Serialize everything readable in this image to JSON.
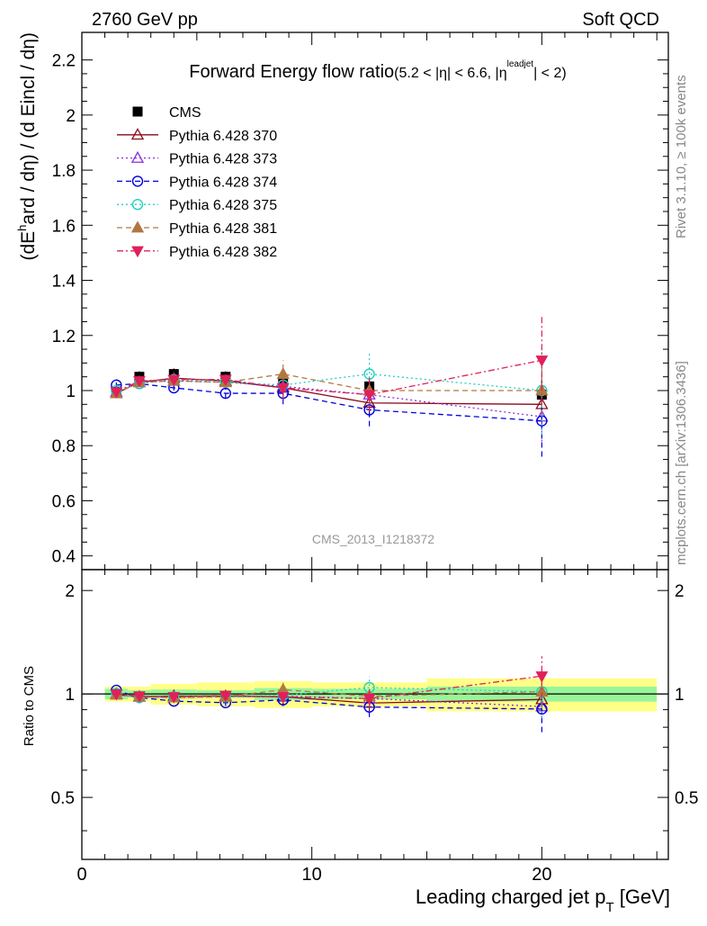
{
  "header": {
    "left": "2760 GeV pp",
    "right": "Soft QCD"
  },
  "side_labels": {
    "rivet": "Rivet 3.1.10, ≥ 100k events",
    "mcplots": "mcplots.cern.ch [arXiv:1306.3436]"
  },
  "chart_data": [
    {
      "type": "line",
      "title": "Forward Energy flow ratio",
      "title_cut": "(5.2 < |η| < 6.6, |η",
      "title_cut_sup": "leadjet",
      "title_cut_end": "| < 2)",
      "ylabel": "(dE^hard / dη) / (d Eincl / dη)",
      "ylabel_parts": {
        "a": "(dE",
        "sup": "h",
        "b": "ard / dη) / (d Eincl / dη)"
      },
      "watermark": "CMS_2013_I1218372",
      "xlim": [
        0,
        25.5
      ],
      "ylim": [
        0.35,
        2.3
      ],
      "yticks": [
        "0.4",
        "0.6",
        "0.8",
        "1",
        "1.2",
        "1.4",
        "1.6",
        "1.8",
        "2",
        "2.2"
      ],
      "x": [
        1.5,
        2.5,
        4.0,
        6.25,
        8.75,
        12.5,
        20.0
      ],
      "legend_position": "top-left",
      "series": [
        {
          "name": "CMS",
          "color": "#000000",
          "marker": "square",
          "dash": "none",
          "values": [
            0.995,
            1.05,
            1.06,
            1.05,
            1.03,
            1.015,
            0.985
          ],
          "errors": [
            0.02,
            0.02,
            0.02,
            0.02,
            0.03,
            0.03,
            0.06
          ]
        },
        {
          "name": "Pythia 6.428 370",
          "color": "#8b0a1a",
          "marker": "triangle-open",
          "dash": "solid",
          "values": [
            0.99,
            1.03,
            1.045,
            1.035,
            1.01,
            0.955,
            0.95
          ],
          "errors": [
            0.01,
            0.01,
            0.01,
            0.02,
            0.03,
            0.05,
            0.08
          ]
        },
        {
          "name": "Pythia 6.428 373",
          "color": "#8a2be2",
          "marker": "triangle-open",
          "dash": "dotted",
          "values": [
            0.995,
            1.03,
            1.035,
            1.03,
            1.015,
            0.985,
            0.905
          ],
          "errors": [
            0.01,
            0.01,
            0.01,
            0.02,
            0.03,
            0.05,
            0.09
          ]
        },
        {
          "name": "Pythia 6.428 374",
          "color": "#0000dd",
          "marker": "circle-open",
          "dash": "dashed",
          "values": [
            1.02,
            1.025,
            1.01,
            0.99,
            0.99,
            0.93,
            0.89
          ],
          "errors": [
            0.01,
            0.01,
            0.01,
            0.02,
            0.04,
            0.06,
            0.13
          ]
        },
        {
          "name": "Pythia 6.428 375",
          "color": "#20d0c0",
          "marker": "circle-open",
          "dash": "dotted",
          "values": [
            1.0,
            1.025,
            1.04,
            1.03,
            1.02,
            1.06,
            1.0
          ],
          "errors": [
            0.01,
            0.01,
            0.01,
            0.02,
            0.04,
            0.08,
            0.16
          ]
        },
        {
          "name": "Pythia 6.428 381",
          "color": "#b07840",
          "marker": "triangle-filled",
          "dash": "dashed",
          "values": [
            0.99,
            1.03,
            1.035,
            1.03,
            1.06,
            1.0,
            1.0
          ],
          "errors": [
            0.01,
            0.01,
            0.01,
            0.02,
            0.05,
            0.05,
            0.09
          ]
        },
        {
          "name": "Pythia 6.428 382",
          "color": "#e0205a",
          "marker": "triangledown-filled",
          "dash": "dashdot",
          "values": [
            0.995,
            1.035,
            1.04,
            1.04,
            1.01,
            0.985,
            1.11
          ],
          "errors": [
            0.01,
            0.01,
            0.01,
            0.02,
            0.04,
            0.06,
            0.16
          ]
        }
      ]
    },
    {
      "type": "line",
      "ylabel": "Ratio to CMS",
      "xlabel": "Leading charged jet p",
      "xlabel_sub": "T",
      "xlabel_unit": " [GeV]",
      "xlim": [
        0,
        25.5
      ],
      "ylim": [
        0.33,
        2.3
      ],
      "log_y": true,
      "xticks": [
        "0",
        "10",
        "20"
      ],
      "yticks": [
        "0.5",
        "1",
        "2"
      ],
      "band_edges": [
        1.0,
        2.0,
        3.0,
        5.0,
        7.5,
        10.0,
        15.0,
        25.0
      ],
      "band_inner": [
        0.035,
        0.025,
        0.03,
        0.025,
        0.04,
        0.035,
        0.05
      ],
      "band_outer": [
        0.05,
        0.05,
        0.07,
        0.08,
        0.09,
        0.08,
        0.11
      ],
      "ratio_series": [
        {
          "name": "Pythia 6.428 370",
          "values": [
            0.995,
            0.981,
            0.986,
            0.986,
            0.981,
            0.941,
            0.964
          ],
          "errors": [
            0.01,
            0.01,
            0.01,
            0.02,
            0.03,
            0.05,
            0.08
          ]
        },
        {
          "name": "Pythia 6.428 373",
          "values": [
            1.0,
            0.981,
            0.976,
            0.981,
            0.985,
            0.97,
            0.919
          ],
          "errors": [
            0.01,
            0.01,
            0.01,
            0.02,
            0.03,
            0.05,
            0.09
          ]
        },
        {
          "name": "Pythia 6.428 374",
          "values": [
            1.025,
            0.976,
            0.953,
            0.943,
            0.961,
            0.916,
            0.904
          ],
          "errors": [
            0.01,
            0.01,
            0.01,
            0.02,
            0.04,
            0.06,
            0.13
          ]
        },
        {
          "name": "Pythia 6.428 375",
          "values": [
            1.005,
            0.976,
            0.981,
            0.981,
            0.99,
            1.044,
            1.015
          ],
          "errors": [
            0.01,
            0.01,
            0.01,
            0.02,
            0.04,
            0.08,
            0.16
          ]
        },
        {
          "name": "Pythia 6.428 381",
          "values": [
            0.995,
            0.981,
            0.976,
            0.981,
            1.029,
            0.985,
            1.015
          ],
          "errors": [
            0.01,
            0.01,
            0.01,
            0.02,
            0.05,
            0.05,
            0.09
          ]
        },
        {
          "name": "Pythia 6.428 382",
          "values": [
            1.0,
            0.986,
            0.981,
            0.99,
            0.981,
            0.97,
            1.127
          ],
          "errors": [
            0.01,
            0.01,
            0.01,
            0.02,
            0.04,
            0.06,
            0.16
          ]
        }
      ]
    }
  ]
}
